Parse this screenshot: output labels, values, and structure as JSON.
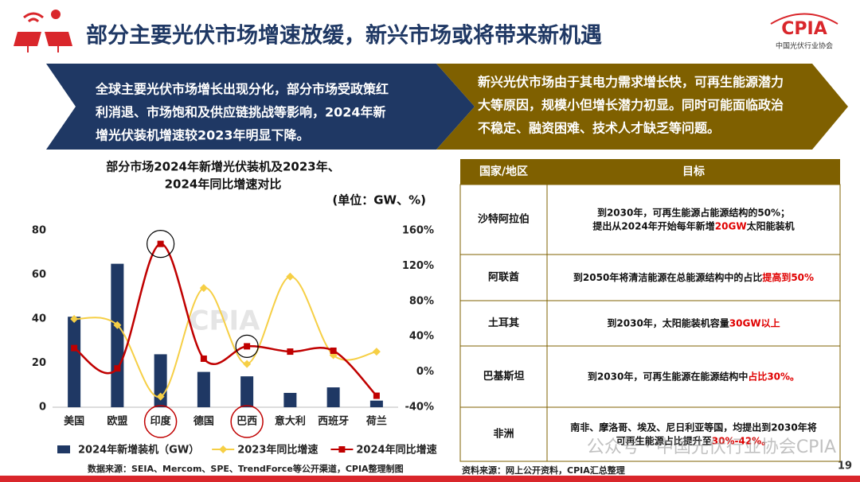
{
  "header": {
    "title": "部分主要光伏市场增速放缓，新兴市场或将带来新机遇",
    "logo_text": "CPIA",
    "logo_subtext": "中国光伏行业协会"
  },
  "banners": [
    {
      "lines": [
        "全球主要光伏市场增长出现分化，部分市场受政策红",
        "利消退、市场饱和及供应链挑战等影响，2024年新",
        "增光伏装机增速较2023年明显下降。"
      ]
    },
    {
      "lines": [
        "新兴光伏市场由于其电力需求增长快，可再生能源潜力",
        "大等原因，规模小但增长潜力初显。同时可能面临政治",
        "不稳定、融资困难、技术人才缺乏等问题。"
      ]
    }
  ],
  "chart_data": {
    "type": "bar_line",
    "title_lines": [
      "部分市场2024年新增光伏装机及2023年、",
      "2024年同比增速对比"
    ],
    "unit": "(单位：GW、%)",
    "categories": [
      "美国",
      "欧盟",
      "印度",
      "德国",
      "巴西",
      "意大利",
      "西班牙",
      "荷兰"
    ],
    "series": [
      {
        "name": "2024年新增装机（GW）",
        "type": "bar",
        "color": "#1f3864",
        "values": [
          41,
          65,
          24,
          16,
          14,
          6.5,
          9,
          3
        ]
      },
      {
        "name": "2023年同比增速",
        "type": "line",
        "axis": "y2",
        "color": "#f6cf45",
        "values": [
          60,
          53,
          -28,
          95,
          9,
          108,
          19,
          23
        ]
      },
      {
        "name": "2024年同比增速",
        "type": "line",
        "axis": "y2",
        "color": "#c00000",
        "values": [
          27,
          4,
          145,
          15,
          29,
          23,
          24,
          -27
        ]
      }
    ],
    "ylim": [
      0,
      80
    ],
    "yticks": [
      0,
      20,
      40,
      60,
      80
    ],
    "y2lim": [
      -40,
      160
    ],
    "y2ticks": [
      {
        "value": -40,
        "label": "-40%"
      },
      {
        "value": 0,
        "label": "0%"
      },
      {
        "value": 40,
        "label": "40%"
      },
      {
        "value": 80,
        "label": "80%"
      },
      {
        "value": 120,
        "label": "120%"
      },
      {
        "value": 160,
        "label": "160%"
      }
    ],
    "source": "数据来源：SEIA、Mercom、SPE、TrendForce等公开渠道，CPIA整理制图"
  },
  "table": {
    "header": [
      "国家/地区",
      "目标"
    ],
    "rows": [
      {
        "region": "沙特阿拉伯",
        "lines": [
          [
            {
              "text": "到2030年，可再生能源占能源结构的50%；"
            }
          ],
          [
            {
              "text": "提出从2024年开始每年新增"
            },
            {
              "text": "20GW",
              "color": "#e00000"
            },
            {
              "text": "太阳能装机"
            }
          ]
        ]
      },
      {
        "region": "阿联酋",
        "lines": [
          [
            {
              "text": "到2050年将清洁能源在总能源结构中的占比"
            },
            {
              "text": "提高到50%",
              "color": "#e00000"
            }
          ]
        ]
      },
      {
        "region": "土耳其",
        "lines": [
          [
            {
              "text": "到2030年，太阳能装机容量"
            },
            {
              "text": "30GW以上",
              "color": "#e00000"
            }
          ]
        ]
      },
      {
        "region": "巴基斯坦",
        "lines": [
          [
            {
              "text": "到2030年，可再生能源在能源结构中"
            },
            {
              "text": "占比30%。",
              "color": "#e00000"
            }
          ]
        ]
      },
      {
        "region": "非洲",
        "lines": [
          [
            {
              "text": "南非、摩洛哥、埃及、尼日利亚等国，均提出到2030年将"
            }
          ],
          [
            {
              "text": "可再生能源占比提升至"
            },
            {
              "text": "30%-42%。",
              "color": "#e00000"
            }
          ]
        ]
      }
    ],
    "source": "资料来源：网上公开资料，CPIA汇总整理"
  },
  "watermark": "公众号 · 中国光伏行业协会CPIA",
  "page_number": "19"
}
